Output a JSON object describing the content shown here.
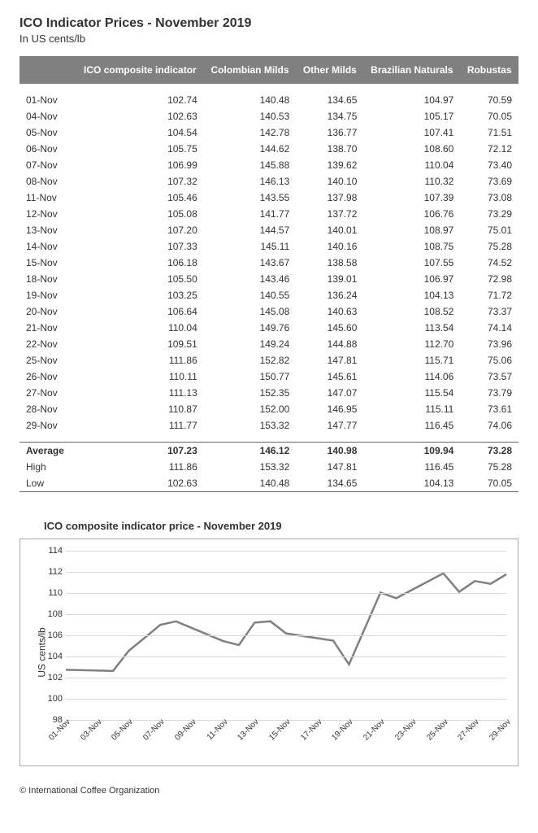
{
  "title": "ICO Indicator Prices - November 2019",
  "subtitle": "In US cents/lb",
  "columns": [
    "",
    "ICO composite indicator",
    "Colombian Milds",
    "Other Milds",
    "Brazilian Naturals",
    "Robustas"
  ],
  "rows": [
    [
      "01-Nov",
      "102.74",
      "140.48",
      "134.65",
      "104.97",
      "70.59"
    ],
    [
      "04-Nov",
      "102.63",
      "140.53",
      "134.75",
      "105.17",
      "70.05"
    ],
    [
      "05-Nov",
      "104.54",
      "142.78",
      "136.77",
      "107.41",
      "71.51"
    ],
    [
      "06-Nov",
      "105.75",
      "144.62",
      "138.70",
      "108.60",
      "72.12"
    ],
    [
      "07-Nov",
      "106.99",
      "145.88",
      "139.62",
      "110.04",
      "73.40"
    ],
    [
      "08-Nov",
      "107.32",
      "146.13",
      "140.10",
      "110.32",
      "73.69"
    ],
    [
      "11-Nov",
      "105.46",
      "143.55",
      "137.98",
      "107.39",
      "73.08"
    ],
    [
      "12-Nov",
      "105.08",
      "141.77",
      "137.72",
      "106.76",
      "73.29"
    ],
    [
      "13-Nov",
      "107.20",
      "144.57",
      "140.01",
      "108.97",
      "75.01"
    ],
    [
      "14-Nov",
      "107.33",
      "145.11",
      "140.16",
      "108.75",
      "75.28"
    ],
    [
      "15-Nov",
      "106.18",
      "143.67",
      "138.58",
      "107.55",
      "74.52"
    ],
    [
      "18-Nov",
      "105.50",
      "143.46",
      "139.01",
      "106.97",
      "72.98"
    ],
    [
      "19-Nov",
      "103.25",
      "140.55",
      "136.24",
      "104.13",
      "71.72"
    ],
    [
      "20-Nov",
      "106.64",
      "145.08",
      "140.63",
      "108.52",
      "73.37"
    ],
    [
      "21-Nov",
      "110.04",
      "149.76",
      "145.60",
      "113.54",
      "74.14"
    ],
    [
      "22-Nov",
      "109.51",
      "149.24",
      "144.88",
      "112.70",
      "73.96"
    ],
    [
      "25-Nov",
      "111.86",
      "152.82",
      "147.81",
      "115.71",
      "75.06"
    ],
    [
      "26-Nov",
      "110.11",
      "150.77",
      "145.61",
      "114.06",
      "73.57"
    ],
    [
      "27-Nov",
      "111.13",
      "152.35",
      "147.07",
      "115.54",
      "73.79"
    ],
    [
      "28-Nov",
      "110.87",
      "152.00",
      "146.95",
      "115.11",
      "73.61"
    ],
    [
      "29-Nov",
      "111.77",
      "153.32",
      "147.77",
      "116.45",
      "74.06"
    ]
  ],
  "summary": [
    {
      "label": "Average",
      "vals": [
        "107.23",
        "146.12",
        "140.98",
        "109.94",
        "73.28"
      ],
      "bold": true
    },
    {
      "label": "High",
      "vals": [
        "111.86",
        "153.32",
        "147.81",
        "116.45",
        "75.28"
      ],
      "bold": false
    },
    {
      "label": "Low",
      "vals": [
        "102.63",
        "140.48",
        "134.65",
        "104.13",
        "70.05"
      ],
      "bold": false
    }
  ],
  "chart": {
    "title": "ICO composite indicator price - November 2019",
    "ylabel": "US cents/lb",
    "ylim": [
      98,
      114
    ],
    "ytick_step": 2,
    "grid_color": "#d9d9d9",
    "border_color": "#aaaaaa",
    "line_color": "#808080",
    "line_width": 2.5,
    "x_categories": [
      "01-Nov",
      "03-Nov",
      "05-Nov",
      "07-Nov",
      "09-Nov",
      "11-Nov",
      "13-Nov",
      "15-Nov",
      "17-Nov",
      "19-Nov",
      "21-Nov",
      "23-Nov",
      "25-Nov",
      "27-Nov",
      "29-Nov"
    ],
    "series_x": [
      1,
      4,
      5,
      6,
      7,
      8,
      11,
      12,
      13,
      14,
      15,
      18,
      19,
      20,
      21,
      22,
      25,
      26,
      27,
      28,
      29
    ],
    "series_y": [
      102.74,
      102.63,
      104.54,
      105.75,
      106.99,
      107.32,
      105.46,
      105.08,
      107.2,
      107.33,
      106.18,
      105.5,
      103.25,
      106.64,
      110.04,
      109.51,
      111.86,
      110.11,
      111.13,
      110.87,
      111.77
    ]
  },
  "footer": "© International Coffee Organization"
}
